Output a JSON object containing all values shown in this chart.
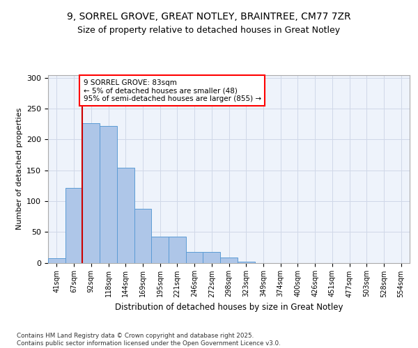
{
  "title_line1": "9, SORREL GROVE, GREAT NOTLEY, BRAINTREE, CM77 7ZR",
  "title_line2": "Size of property relative to detached houses in Great Notley",
  "xlabel": "Distribution of detached houses by size in Great Notley",
  "ylabel": "Number of detached properties",
  "categories": [
    "41sqm",
    "67sqm",
    "92sqm",
    "118sqm",
    "144sqm",
    "169sqm",
    "195sqm",
    "221sqm",
    "246sqm",
    "272sqm",
    "298sqm",
    "323sqm",
    "349sqm",
    "374sqm",
    "400sqm",
    "426sqm",
    "451sqm",
    "477sqm",
    "503sqm",
    "528sqm",
    "554sqm"
  ],
  "bar_heights": [
    7,
    122,
    227,
    222,
    154,
    87,
    42,
    42,
    17,
    17,
    8,
    2,
    0,
    0,
    0,
    0,
    0,
    0,
    0,
    0,
    0
  ],
  "bar_color": "#aec6e8",
  "bar_edgecolor": "#5b9bd5",
  "grid_color": "#d0d8e8",
  "bg_color": "#eef3fb",
  "vline_color": "#cc0000",
  "annotation_text": "9 SORREL GROVE: 83sqm\n← 5% of detached houses are smaller (48)\n95% of semi-detached houses are larger (855) →",
  "footer": "Contains HM Land Registry data © Crown copyright and database right 2025.\nContains public sector information licensed under the Open Government Licence v3.0.",
  "ylim": [
    0,
    305
  ],
  "yticks": [
    0,
    50,
    100,
    150,
    200,
    250,
    300
  ]
}
